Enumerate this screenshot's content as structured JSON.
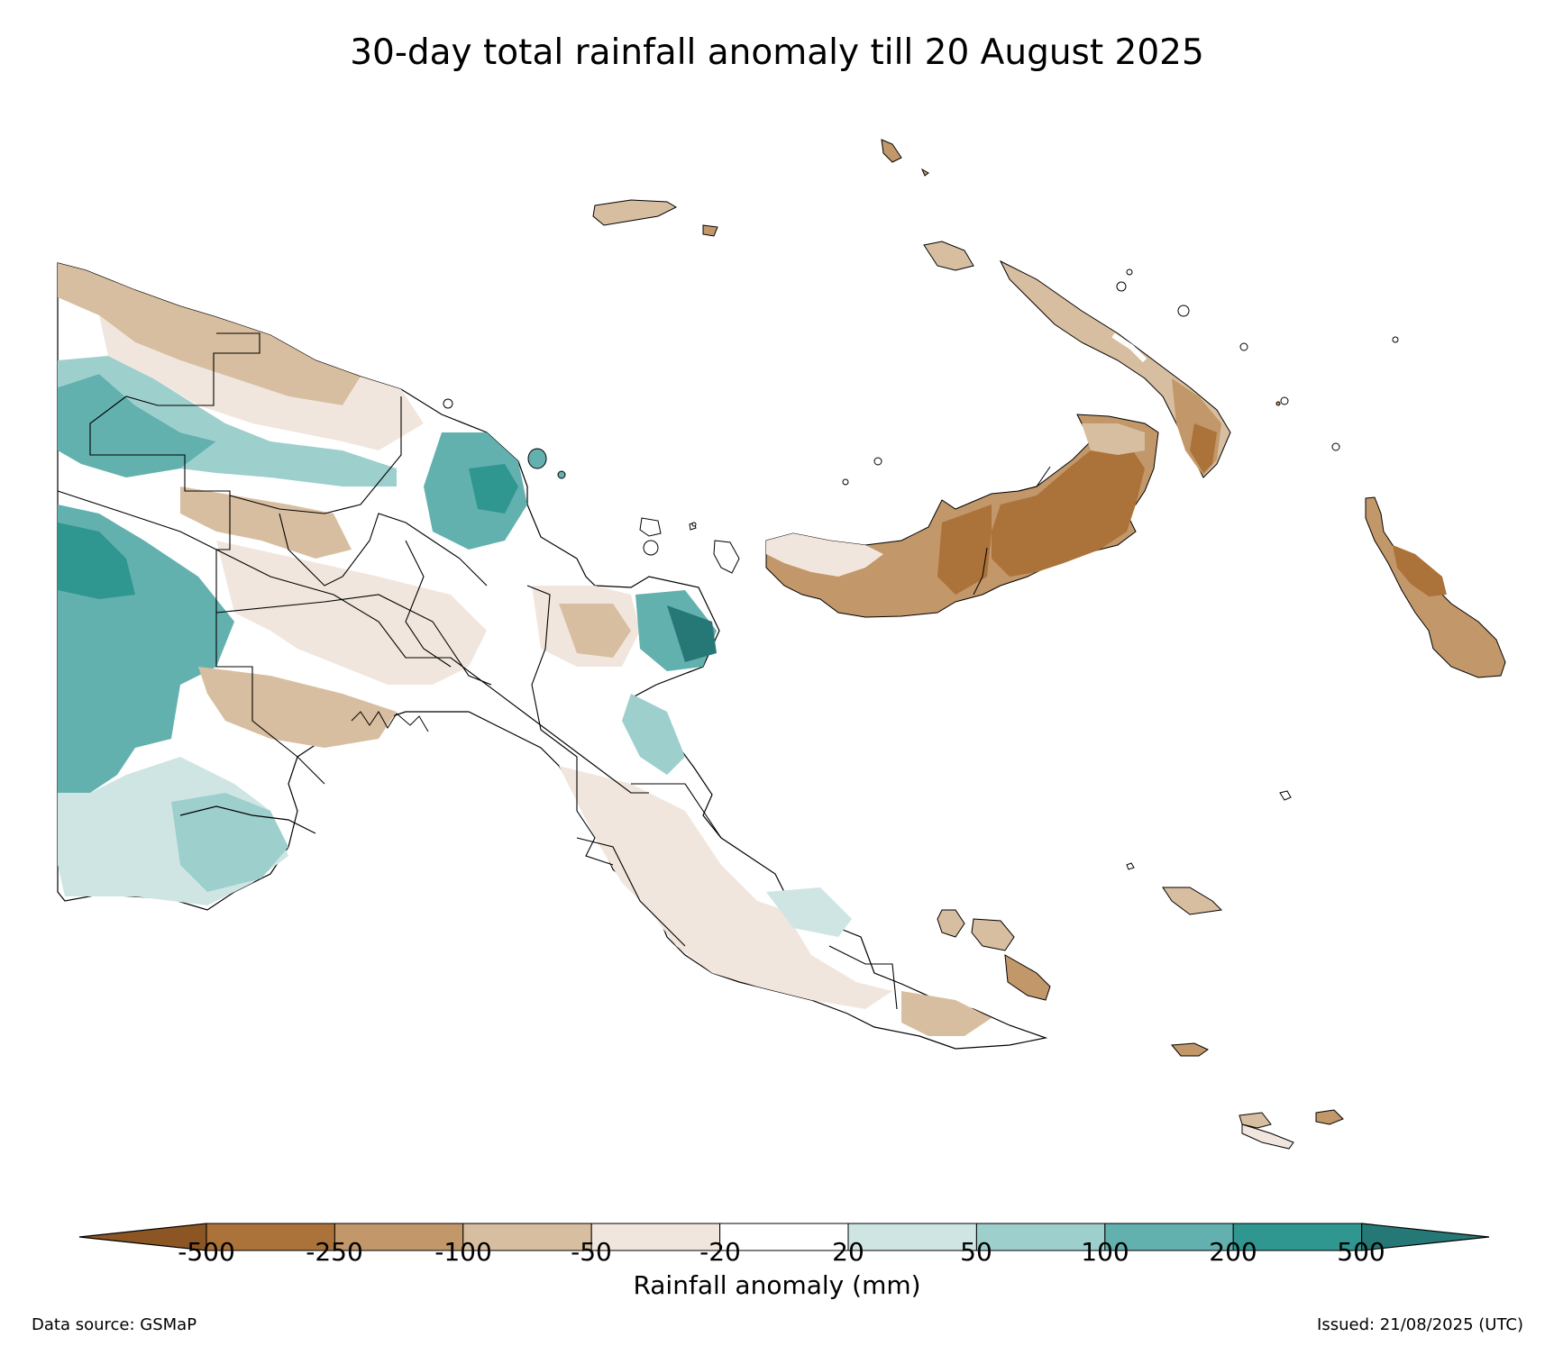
{
  "title": "30-day total rainfall anomaly till 20 August 2025",
  "colorbar": {
    "label": "Rainfall anomaly (mm)",
    "ticks": [
      "-500",
      "-250",
      "-100",
      "-50",
      "-20",
      "20",
      "50",
      "100",
      "200",
      "500"
    ],
    "colors": {
      "below_min": "#8c5524",
      "c1": "#ab723a",
      "c2": "#c29769",
      "c3": "#d8bea0",
      "c4": "#f1e6dd",
      "c5": "#ffffff",
      "c6": "#cfe5e4",
      "c7": "#9dcfcd",
      "c8": "#63b1ae",
      "c9": "#2f9690",
      "above_max": "#267876"
    }
  },
  "footer": {
    "source": "Data source: GSMaP",
    "issued": "Issued: 21/08/2025 (UTC)"
  }
}
